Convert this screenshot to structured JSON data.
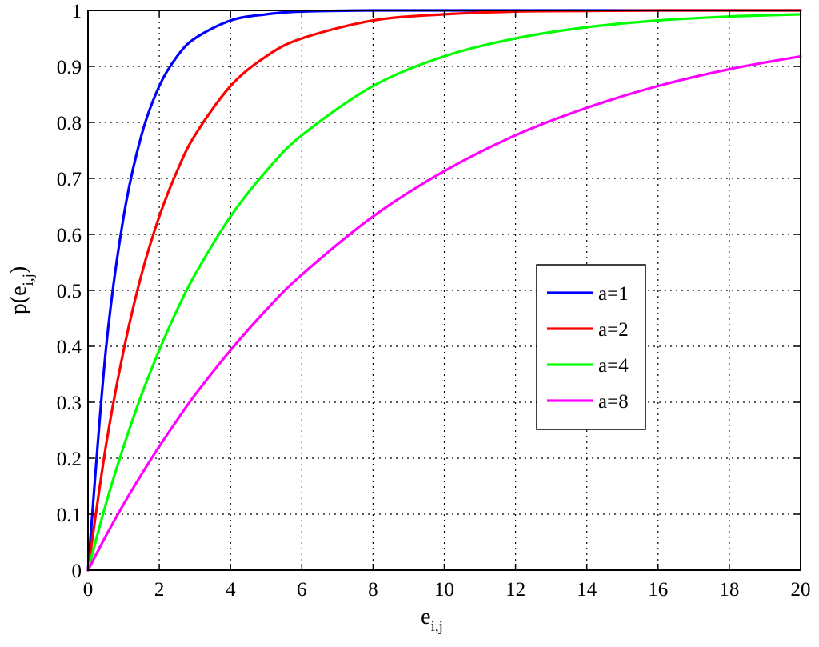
{
  "chart_data": {
    "type": "line",
    "title": "",
    "xlabel": "e",
    "xlabel_subscript": "i,j",
    "ylabel": "p(e",
    "ylabel_subscript": "i,j",
    "ylabel_suffix": ")",
    "xlim": [
      0,
      20
    ],
    "ylim": [
      0,
      1
    ],
    "x_ticks": [
      0,
      2,
      4,
      6,
      8,
      10,
      12,
      14,
      16,
      18,
      20
    ],
    "y_ticks": [
      0,
      0.1,
      0.2,
      0.3,
      0.4,
      0.5,
      0.6,
      0.7,
      0.8,
      0.9,
      1
    ],
    "x_tick_labels": [
      "0",
      "2",
      "4",
      "6",
      "8",
      "10",
      "12",
      "14",
      "16",
      "18",
      "20"
    ],
    "y_tick_labels": [
      "0",
      "0.1",
      "0.2",
      "0.3",
      "0.4",
      "0.5",
      "0.6",
      "0.7",
      "0.8",
      "0.9",
      "1"
    ],
    "grid": true,
    "legend_position": "center-right",
    "x": [
      0,
      0.5,
      1,
      1.5,
      2,
      2.5,
      3,
      4,
      5,
      6,
      8,
      10,
      12,
      14,
      16,
      18,
      20
    ],
    "series": [
      {
        "name": "a=1",
        "color": "#0000ff",
        "values": [
          0,
          0.393,
          0.632,
          0.777,
          0.865,
          0.918,
          0.95,
          0.982,
          0.993,
          0.998,
          1.0,
          1.0,
          1.0,
          1.0,
          1.0,
          1.0,
          1.0
        ]
      },
      {
        "name": "a=2",
        "color": "#ff0000",
        "values": [
          0,
          0.221,
          0.393,
          0.528,
          0.632,
          0.713,
          0.777,
          0.865,
          0.918,
          0.95,
          0.982,
          0.993,
          0.998,
          0.999,
          1.0,
          1.0,
          1.0
        ]
      },
      {
        "name": "a=4",
        "color": "#00ff00",
        "values": [
          0,
          0.118,
          0.221,
          0.313,
          0.393,
          0.465,
          0.528,
          0.632,
          0.713,
          0.777,
          0.865,
          0.918,
          0.95,
          0.97,
          0.982,
          0.989,
          0.993
        ]
      },
      {
        "name": "a=8",
        "color": "#ff00ff",
        "values": [
          0,
          0.061,
          0.118,
          0.171,
          0.221,
          0.268,
          0.313,
          0.393,
          0.465,
          0.528,
          0.632,
          0.713,
          0.777,
          0.826,
          0.865,
          0.895,
          0.918
        ]
      }
    ]
  }
}
